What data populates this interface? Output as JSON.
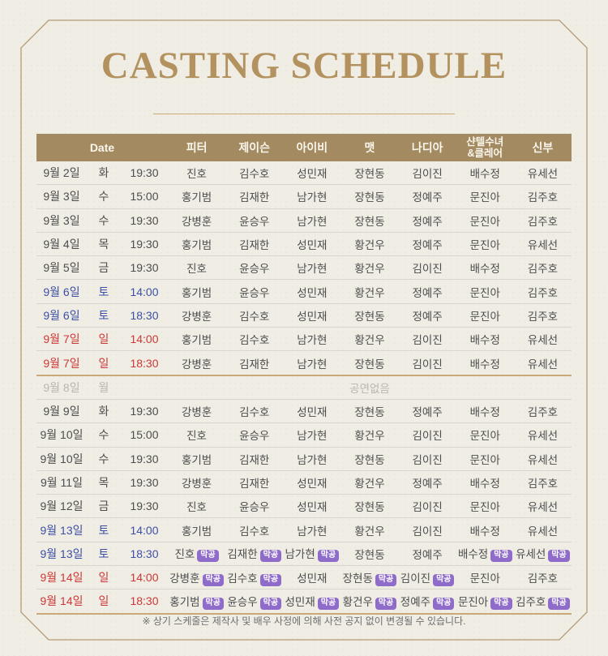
{
  "title": "CASTING SCHEDULE",
  "footnote": "※ 상기 스케줄은 제작사 및 배우 사정에 의해 사전 공지 없이 변경될 수 있습니다.",
  "colors": {
    "background": "#f0ede4",
    "frame": "#b49b76",
    "title": "#b3925f",
    "header_bg": "#a38a61",
    "header_text": "#faf6ec",
    "text": "#4d4d4d",
    "saturday": "#3c4fa5",
    "sunday": "#cd3737",
    "disabled": "#b9b6ae",
    "badge_bg": "#8f6cc9",
    "badge_text": "#ffffff",
    "row_divider": "#d8d5cc",
    "week_divider": "#c9a97a"
  },
  "table": {
    "headers": [
      "Date",
      "피터",
      "제이슨",
      "아이비",
      "맷",
      "나디아",
      "샨텔수녀\n&클레어",
      "신부"
    ],
    "badge_label": "막공",
    "no_show_label": "공연없음",
    "rows": [
      {
        "date": "9월 2일",
        "day": "화",
        "time": "19:30",
        "type": "weekday",
        "casts": [
          "진호",
          "김수호",
          "성민재",
          "장현동",
          "김이진",
          "배수정",
          "유세선"
        ],
        "badges": []
      },
      {
        "date": "9월 3일",
        "day": "수",
        "time": "15:00",
        "type": "weekday",
        "casts": [
          "홍기범",
          "김재한",
          "남가현",
          "장현동",
          "정예주",
          "문진아",
          "김주호"
        ],
        "badges": []
      },
      {
        "date": "9월 3일",
        "day": "수",
        "time": "19:30",
        "type": "weekday",
        "casts": [
          "강병훈",
          "윤승우",
          "남가현",
          "장현동",
          "정예주",
          "문진아",
          "김주호"
        ],
        "badges": []
      },
      {
        "date": "9월 4일",
        "day": "목",
        "time": "19:30",
        "type": "weekday",
        "casts": [
          "홍기범",
          "김재한",
          "성민재",
          "황건우",
          "정예주",
          "문진아",
          "유세선"
        ],
        "badges": []
      },
      {
        "date": "9월 5일",
        "day": "금",
        "time": "19:30",
        "type": "weekday",
        "casts": [
          "진호",
          "윤승우",
          "남가현",
          "황건우",
          "김이진",
          "배수정",
          "김주호"
        ],
        "badges": []
      },
      {
        "date": "9월 6일",
        "day": "토",
        "time": "14:00",
        "type": "saturday",
        "casts": [
          "홍기범",
          "윤승우",
          "성민재",
          "황건우",
          "정예주",
          "문진아",
          "김주호"
        ],
        "badges": []
      },
      {
        "date": "9월 6일",
        "day": "토",
        "time": "18:30",
        "type": "saturday",
        "casts": [
          "강병훈",
          "김수호",
          "성민재",
          "장현동",
          "정예주",
          "문진아",
          "김주호"
        ],
        "badges": []
      },
      {
        "date": "9월 7일",
        "day": "일",
        "time": "14:00",
        "type": "sunday",
        "casts": [
          "홍기범",
          "김수호",
          "남가현",
          "황건우",
          "김이진",
          "배수정",
          "유세선"
        ],
        "badges": []
      },
      {
        "date": "9월 7일",
        "day": "일",
        "time": "18:30",
        "type": "sunday",
        "casts": [
          "강병훈",
          "김재한",
          "남가현",
          "장현동",
          "김이진",
          "배수정",
          "유세선"
        ],
        "badges": []
      },
      {
        "date": "9월 8일",
        "day": "월",
        "time": "",
        "type": "noshow",
        "no_show": true,
        "divider_top": true,
        "casts": [],
        "badges": []
      },
      {
        "date": "9월 9일",
        "day": "화",
        "time": "19:30",
        "type": "weekday",
        "casts": [
          "강병훈",
          "김수호",
          "성민재",
          "장현동",
          "정예주",
          "배수정",
          "김주호"
        ],
        "badges": []
      },
      {
        "date": "9월 10일",
        "day": "수",
        "time": "15:00",
        "type": "weekday",
        "casts": [
          "진호",
          "윤승우",
          "남가현",
          "황건우",
          "김이진",
          "문진아",
          "유세선"
        ],
        "badges": []
      },
      {
        "date": "9월 10일",
        "day": "수",
        "time": "19:30",
        "type": "weekday",
        "casts": [
          "홍기범",
          "김재한",
          "남가현",
          "장현동",
          "김이진",
          "문진아",
          "유세선"
        ],
        "badges": []
      },
      {
        "date": "9월 11일",
        "day": "목",
        "time": "19:30",
        "type": "weekday",
        "casts": [
          "강병훈",
          "김재한",
          "성민재",
          "황건우",
          "정예주",
          "배수정",
          "김주호"
        ],
        "badges": []
      },
      {
        "date": "9월 12일",
        "day": "금",
        "time": "19:30",
        "type": "weekday",
        "casts": [
          "진호",
          "윤승우",
          "성민재",
          "장현동",
          "김이진",
          "문진아",
          "유세선"
        ],
        "badges": []
      },
      {
        "date": "9월 13일",
        "day": "토",
        "time": "14:00",
        "type": "saturday",
        "casts": [
          "홍기범",
          "김수호",
          "남가현",
          "황건우",
          "김이진",
          "배수정",
          "유세선"
        ],
        "badges": []
      },
      {
        "date": "9월 13일",
        "day": "토",
        "time": "18:30",
        "type": "saturday",
        "casts": [
          "진호",
          "김재한",
          "남가현",
          "장현동",
          "정예주",
          "배수정",
          "유세선"
        ],
        "badges": [
          0,
          1,
          2,
          5,
          6
        ]
      },
      {
        "date": "9월 14일",
        "day": "일",
        "time": "14:00",
        "type": "sunday",
        "casts": [
          "강병훈",
          "김수호",
          "성민재",
          "장현동",
          "김이진",
          "문진아",
          "김주호"
        ],
        "badges": [
          0,
          1,
          3,
          4
        ]
      },
      {
        "date": "9월 14일",
        "day": "일",
        "time": "18:30",
        "type": "sunday",
        "casts": [
          "홍기범",
          "윤승우",
          "성민재",
          "황건우",
          "정예주",
          "문진아",
          "김주호"
        ],
        "badges": [
          0,
          1,
          2,
          3,
          4,
          5,
          6
        ]
      }
    ]
  }
}
